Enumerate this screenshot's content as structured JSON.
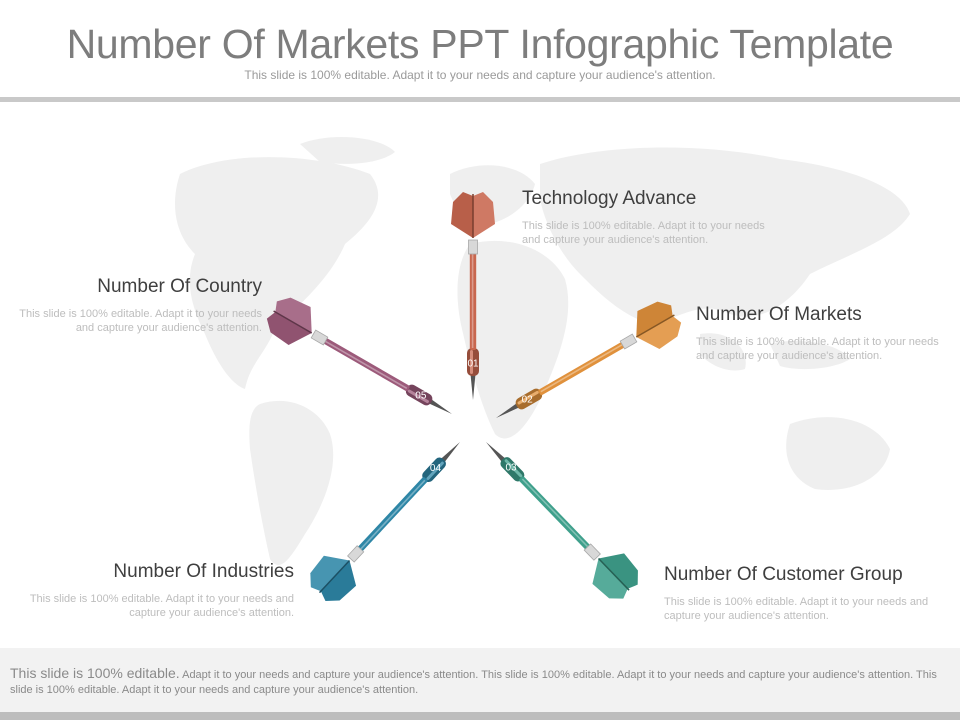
{
  "header": {
    "title": "Number Of Markets PPT Infographic Template",
    "subtitle": "This slide is 100% editable. Adapt it to your needs and capture your audience's attention."
  },
  "items": [
    {
      "number": "01",
      "heading": "Technology Advance",
      "text": "This slide is 100% editable. Adapt it to your needs and capture your audience's attention.",
      "color": "#c8674f"
    },
    {
      "number": "02",
      "heading": "Number  Of Markets",
      "text": "This slide is 100% editable. Adapt it to your needs and capture your audience's attention.",
      "color": "#e0913c"
    },
    {
      "number": "03",
      "heading": "Number  Of Customer  Group",
      "text": "This slide is 100% editable. Adapt it to your needs and capture your audience's attention.",
      "color": "#3fa08c"
    },
    {
      "number": "04",
      "heading": "Number  Of Industries",
      "text": "This slide is 100% editable. Adapt it to your needs and capture your audience's attention.",
      "color": "#2e86a6"
    },
    {
      "number": "05",
      "heading": "Number  Of Country",
      "text": "This slide is 100% editable. Adapt it to your needs and capture your audience's attention.",
      "color": "#9c5a7a"
    }
  ],
  "footer": {
    "lead": "This slide is 100% editable.",
    "text": " Adapt it to your needs and capture your audience's attention. This slide is 100% editable. Adapt it to your needs and capture your audience's attention. This slide is 100% editable. Adapt it to your needs and capture your audience's attention."
  }
}
